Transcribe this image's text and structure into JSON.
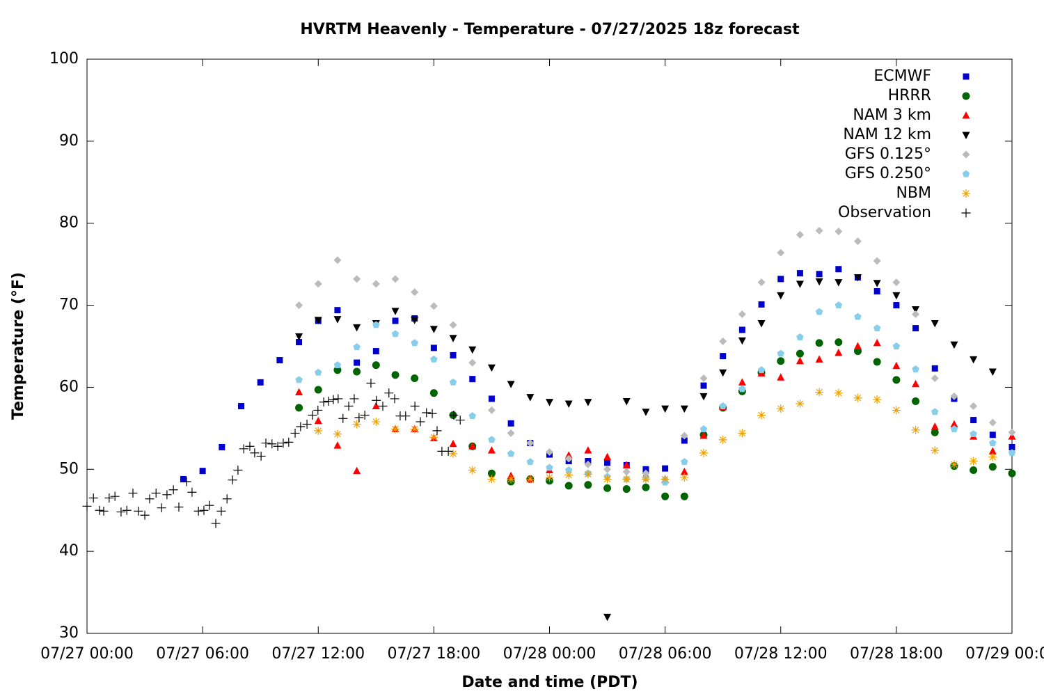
{
  "chart_data": {
    "type": "scatter",
    "title": "HVRTM Heavenly - Temperature - 07/27/2025 18z forecast",
    "x_label": "Date and time (PDT)",
    "y_label": "Temperature (°F)",
    "xlim": [
      "07/27 00:00",
      "07/29 00:00"
    ],
    "xticks": [
      "07/27 00:00",
      "07/27 06:00",
      "07/27 12:00",
      "07/27 18:00",
      "07/28 00:00",
      "07/28 06:00",
      "07/28 12:00",
      "07/28 18:00",
      "07/29 00:00"
    ],
    "ylim": [
      30,
      100
    ],
    "yticks": [
      30,
      40,
      50,
      60,
      70,
      80,
      90,
      100
    ],
    "grid": false,
    "legend": "top-right",
    "x": [
      "07/27 05:00",
      "07/27 06:00",
      "07/27 07:00",
      "07/27 08:00",
      "07/27 09:00",
      "07/27 10:00",
      "07/27 11:00",
      "07/27 12:00",
      "07/27 13:00",
      "07/27 14:00",
      "07/27 15:00",
      "07/27 16:00",
      "07/27 17:00",
      "07/27 18:00",
      "07/27 19:00",
      "07/27 20:00",
      "07/27 21:00",
      "07/27 22:00",
      "07/27 23:00",
      "07/28 00:00",
      "07/28 01:00",
      "07/28 02:00",
      "07/28 03:00",
      "07/28 04:00",
      "07/28 05:00",
      "07/28 06:00",
      "07/28 07:00",
      "07/28 08:00",
      "07/28 09:00",
      "07/28 10:00",
      "07/28 11:00",
      "07/28 12:00",
      "07/28 13:00",
      "07/28 14:00",
      "07/28 15:00",
      "07/28 16:00",
      "07/28 17:00",
      "07/28 18:00",
      "07/28 19:00",
      "07/28 20:00",
      "07/28 21:00",
      "07/28 22:00",
      "07/28 23:00",
      "07/29 00:00"
    ],
    "series": [
      {
        "name": "ECMWF",
        "color": "#0000cc",
        "marker": "square",
        "values": [
          48.8,
          49.8,
          52.7,
          57.7,
          60.6,
          63.3,
          65.5,
          68.1,
          69.4,
          63.0,
          64.4,
          68.1,
          68.4,
          64.8,
          63.9,
          61.0,
          58.6,
          55.6,
          53.2,
          51.8,
          51.0,
          51.0,
          50.8,
          50.5,
          50.0,
          50.1,
          53.5,
          60.2,
          63.8,
          67.0,
          70.1,
          73.2,
          73.9,
          73.8,
          74.4,
          73.4,
          71.7,
          70.0,
          67.2,
          62.3,
          58.6,
          56.0,
          54.2,
          52.7
        ]
      },
      {
        "name": "HRRR",
        "color": "#006400",
        "marker": "circle",
        "values": [
          null,
          null,
          null,
          null,
          null,
          null,
          57.5,
          59.7,
          62.1,
          61.9,
          62.7,
          61.5,
          61.1,
          59.3,
          56.6,
          52.8,
          49.5,
          48.5,
          48.8,
          48.6,
          48.0,
          48.1,
          47.7,
          47.6,
          47.8,
          46.7,
          46.7,
          54.2,
          57.5,
          59.5,
          61.8,
          63.2,
          64.1,
          65.4,
          65.5,
          64.4,
          63.1,
          60.9,
          58.3,
          54.5,
          50.4,
          49.9,
          50.3,
          49.5
        ]
      },
      {
        "name": "NAM 3 km",
        "color": "#ff0000",
        "marker": "triangle",
        "values": [
          null,
          null,
          null,
          null,
          null,
          null,
          59.4,
          55.9,
          52.9,
          49.8,
          57.7,
          54.9,
          54.9,
          53.8,
          53.1,
          52.8,
          52.3,
          49.2,
          48.8,
          49.9,
          51.7,
          52.3,
          51.5,
          50.5,
          49.3,
          48.7,
          49.7,
          54.1,
          57.6,
          60.6,
          61.7,
          61.2,
          63.2,
          63.4,
          64.2,
          65.0,
          65.4,
          62.6,
          60.4,
          55.2,
          55.5,
          54.0,
          52.2,
          54.0
        ]
      },
      {
        "name": "NAM 12 km",
        "color": "#000000",
        "marker": "triangle-down",
        "values": [
          null,
          null,
          null,
          null,
          null,
          null,
          66.2,
          68.2,
          68.3,
          67.3,
          67.8,
          69.3,
          68.2,
          67.1,
          66.0,
          64.6,
          62.4,
          60.4,
          58.8,
          58.2,
          58.0,
          58.2,
          32.0,
          58.3,
          57.0,
          57.4,
          57.4,
          58.9,
          61.8,
          65.7,
          67.8,
          71.2,
          72.6,
          72.9,
          72.8,
          73.4,
          72.7,
          71.2,
          69.5,
          67.8,
          65.2,
          63.4,
          61.9,
          null
        ]
      },
      {
        "name": "GFS 0.125°",
        "color": "#bbbbbb",
        "marker": "diamond",
        "values": [
          null,
          null,
          null,
          null,
          null,
          null,
          70.0,
          72.6,
          75.5,
          73.2,
          72.6,
          73.2,
          71.6,
          69.9,
          67.6,
          63.0,
          57.2,
          54.4,
          53.2,
          52.1,
          51.3,
          50.6,
          50.0,
          49.7,
          49.5,
          48.8,
          54.1,
          61.1,
          65.6,
          68.9,
          72.8,
          76.4,
          78.6,
          79.1,
          79.0,
          77.8,
          75.4,
          72.8,
          68.9,
          61.1,
          58.9,
          57.7,
          55.7,
          54.5
        ]
      },
      {
        "name": "GFS 0.250°",
        "color": "#87ceeb",
        "marker": "pentagon",
        "values": [
          null,
          null,
          null,
          null,
          null,
          null,
          60.9,
          61.8,
          62.7,
          64.9,
          67.6,
          66.5,
          65.4,
          63.4,
          60.6,
          56.5,
          53.6,
          51.9,
          50.9,
          50.2,
          49.9,
          49.5,
          49.1,
          48.8,
          48.9,
          48.4,
          50.9,
          54.9,
          57.7,
          59.8,
          62.1,
          64.1,
          66.1,
          69.2,
          70.0,
          68.6,
          67.2,
          65.0,
          62.2,
          57.0,
          54.9,
          54.3,
          53.2,
          52.0
        ]
      },
      {
        "name": "NBM",
        "color": "#f0a000",
        "marker": "asterisk",
        "values": [
          null,
          null,
          null,
          null,
          null,
          null,
          null,
          54.7,
          54.3,
          55.5,
          55.8,
          54.9,
          54.9,
          53.9,
          51.9,
          49.9,
          48.8,
          48.8,
          48.8,
          49.0,
          49.3,
          49.4,
          48.8,
          48.8,
          48.8,
          48.8,
          49.0,
          52.0,
          53.6,
          54.4,
          56.6,
          57.4,
          58.0,
          59.4,
          59.3,
          58.7,
          58.5,
          57.2,
          54.8,
          52.3,
          50.6,
          51.0,
          51.5,
          null
        ]
      },
      {
        "name": "Observation",
        "color": "#000000",
        "marker": "plus",
        "x": [
          "07/27 00:00",
          "07/27 00:20",
          "07/27 00:39",
          "07/27 00:52",
          "07/27 01:09",
          "07/27 01:27",
          "07/27 01:46",
          "07/27 02:04",
          "07/27 02:23",
          "07/27 02:40",
          "07/27 03:00",
          "07/27 03:15",
          "07/27 03:35",
          "07/27 03:52",
          "07/27 04:09",
          "07/27 04:29",
          "07/27 04:46",
          "07/27 05:10",
          "07/27 05:27",
          "07/27 05:47",
          "07/27 06:04",
          "07/27 06:21",
          "07/27 06:41",
          "07/27 06:58",
          "07/27 07:16",
          "07/27 07:33",
          "07/27 07:50",
          "07/27 08:08",
          "07/27 08:27",
          "07/27 08:42",
          "07/27 09:02",
          "07/27 09:17",
          "07/27 09:36",
          "07/27 09:54",
          "07/27 10:11",
          "07/27 10:28",
          "07/27 10:48",
          "07/27 11:05",
          "07/27 11:25",
          "07/27 11:42",
          "07/27 11:59",
          "07/27 12:17",
          "07/27 12:32",
          "07/27 12:47",
          "07/27 13:02",
          "07/27 13:17",
          "07/27 13:35",
          "07/27 13:52",
          "07/27 14:07",
          "07/27 14:25",
          "07/27 14:44",
          "07/27 15:01",
          "07/27 15:21",
          "07/27 15:40",
          "07/27 15:58",
          "07/27 16:15",
          "07/27 16:32",
          "07/27 17:01",
          "07/27 17:18",
          "07/27 17:37",
          "07/27 17:55",
          "07/27 18:10",
          "07/27 18:25",
          "07/27 18:45",
          "07/27 19:02",
          "07/27 19:22"
        ],
        "values": [
          45.5,
          46.5,
          45.0,
          44.9,
          46.5,
          46.7,
          44.8,
          45.0,
          47.1,
          44.9,
          44.4,
          46.4,
          47.1,
          45.3,
          46.9,
          47.5,
          45.4,
          48.5,
          47.2,
          44.9,
          45.0,
          45.6,
          43.4,
          44.9,
          46.4,
          48.7,
          49.9,
          52.5,
          52.8,
          52.0,
          51.6,
          53.2,
          53.1,
          52.8,
          53.2,
          53.3,
          54.4,
          55.2,
          55.5,
          56.6,
          57.2,
          58.2,
          58.3,
          58.5,
          58.6,
          56.2,
          57.7,
          58.6,
          56.3,
          56.6,
          60.5,
          58.4,
          57.7,
          59.3,
          58.6,
          56.5,
          56.5,
          57.7,
          55.8,
          56.9,
          56.8,
          54.7,
          52.2,
          52.2,
          56.6,
          56.0
        ]
      }
    ]
  }
}
